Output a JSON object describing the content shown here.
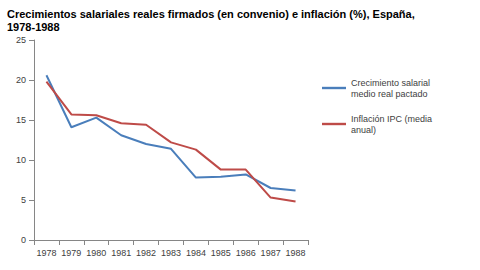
{
  "chart_data": {
    "type": "line",
    "title": "Crecimientos salariales reales firmados (en convenio) e inflación (%), España, 1978-1988",
    "categories": [
      "1978",
      "1979",
      "1980",
      "1981",
      "1982",
      "1983",
      "1984",
      "1985",
      "1986",
      "1987",
      "1988"
    ],
    "series": [
      {
        "name": "Crecimiento salarial medio real pactado",
        "color": "#4a7ebb",
        "values": [
          20.6,
          14.1,
          15.3,
          13.1,
          12.0,
          11.4,
          7.8,
          7.9,
          8.2,
          6.5,
          6.2
        ]
      },
      {
        "name": "Inflación IPC (media anual)",
        "color": "#be4b48",
        "values": [
          19.8,
          15.7,
          15.6,
          14.6,
          14.4,
          12.2,
          11.3,
          8.8,
          8.8,
          5.3,
          4.8
        ]
      }
    ],
    "ylim": [
      0,
      25
    ],
    "yticks": [
      0,
      5,
      10,
      15,
      20,
      25
    ],
    "grid": false,
    "legend": "right"
  }
}
